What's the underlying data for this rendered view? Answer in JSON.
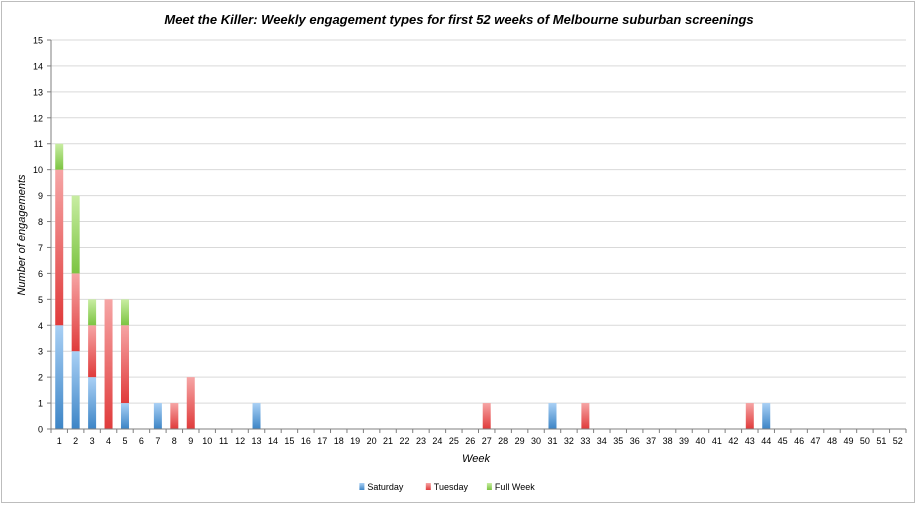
{
  "chart_data": {
    "type": "bar",
    "stacked": true,
    "title": "Meet the Killer: Weekly engagement types for first 52 weeks of Melbourne suburban screenings",
    "xlabel": "Week",
    "ylabel": "Number of engagements",
    "ylim": [
      0,
      15
    ],
    "yticks": [
      "0",
      "1",
      "2",
      "3",
      "4",
      "5",
      "6",
      "7",
      "8",
      "9",
      "10",
      "11",
      "12",
      "13",
      "14",
      "15"
    ],
    "grid": true,
    "legend_position": "bottom",
    "categories": [
      "1",
      "2",
      "3",
      "4",
      "5",
      "6",
      "7",
      "8",
      "9",
      "10",
      "11",
      "12",
      "13",
      "14",
      "15",
      "16",
      "17",
      "18",
      "19",
      "20",
      "21",
      "22",
      "23",
      "24",
      "25",
      "26",
      "27",
      "28",
      "29",
      "30",
      "31",
      "32",
      "33",
      "34",
      "35",
      "36",
      "37",
      "38",
      "39",
      "40",
      "41",
      "42",
      "43",
      "44",
      "45",
      "46",
      "47",
      "48",
      "49",
      "50",
      "51",
      "52"
    ],
    "series": [
      {
        "name": "Saturday",
        "color": "#5b9bd5",
        "values": [
          4,
          3,
          2,
          0,
          1,
          0,
          1,
          0,
          0,
          0,
          0,
          0,
          1,
          0,
          0,
          0,
          0,
          0,
          0,
          0,
          0,
          0,
          0,
          0,
          0,
          0,
          0,
          0,
          0,
          0,
          1,
          0,
          0,
          0,
          0,
          0,
          0,
          0,
          0,
          0,
          0,
          0,
          0,
          1,
          0,
          0,
          0,
          0,
          0,
          0,
          0,
          0
        ]
      },
      {
        "name": "Tuesday",
        "color": "#e85c5c",
        "values": [
          6,
          3,
          2,
          5,
          3,
          0,
          0,
          1,
          2,
          0,
          0,
          0,
          0,
          0,
          0,
          0,
          0,
          0,
          0,
          0,
          0,
          0,
          0,
          0,
          0,
          0,
          1,
          0,
          0,
          0,
          0,
          0,
          1,
          0,
          0,
          0,
          0,
          0,
          0,
          0,
          0,
          0,
          1,
          0,
          0,
          0,
          0,
          0,
          0,
          0,
          0,
          0
        ]
      },
      {
        "name": "Full Week",
        "color": "#8fd14f",
        "values": [
          1,
          3,
          1,
          0,
          1,
          0,
          0,
          0,
          0,
          0,
          0,
          0,
          0,
          0,
          0,
          0,
          0,
          0,
          0,
          0,
          0,
          0,
          0,
          0,
          0,
          0,
          0,
          0,
          0,
          0,
          0,
          0,
          0,
          0,
          0,
          0,
          0,
          0,
          0,
          0,
          0,
          0,
          0,
          0,
          0,
          0,
          0,
          0,
          0,
          0,
          0,
          0
        ]
      }
    ]
  }
}
